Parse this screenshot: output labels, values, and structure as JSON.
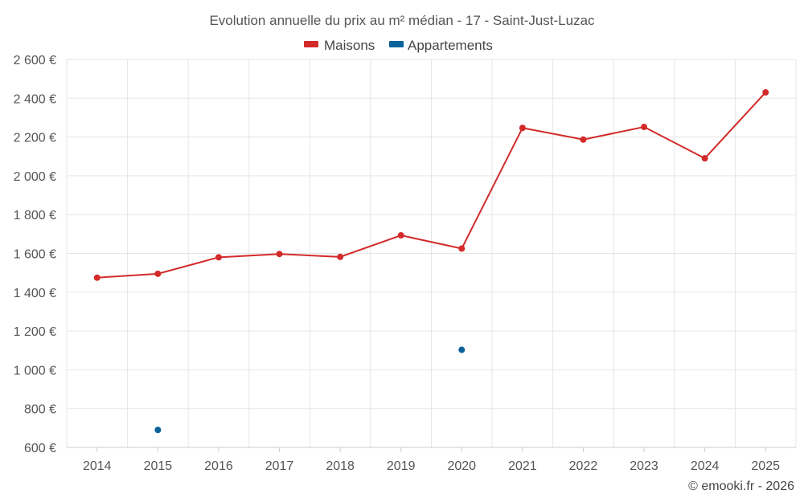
{
  "chart_data": {
    "type": "line",
    "title": "Evolution annuelle du prix au m² médian - 17 - Saint-Just-Luzac",
    "categories": [
      "2014",
      "2015",
      "2016",
      "2017",
      "2018",
      "2019",
      "2020",
      "2021",
      "2022",
      "2023",
      "2024",
      "2025"
    ],
    "series": [
      {
        "name": "Maisons",
        "color": "#d32a2a",
        "values": [
          1475,
          1495,
          1580,
          1597,
          1582,
          1693,
          1625,
          2247,
          2187,
          2252,
          2090,
          2430
        ]
      },
      {
        "name": "Appartements",
        "color": "#0b629b",
        "values": [
          null,
          690,
          null,
          null,
          null,
          null,
          1103,
          null,
          null,
          null,
          null,
          null
        ]
      }
    ],
    "ylim": [
      600,
      2600
    ],
    "yticks": [
      600,
      800,
      1000,
      1200,
      1400,
      1600,
      1800,
      2000,
      2200,
      2400,
      2600
    ],
    "ytick_labels": [
      "600 €",
      "800 €",
      "1 000 €",
      "1 200 €",
      "1 400 €",
      "1 600 €",
      "1 800 €",
      "2 000 €",
      "2 200 €",
      "2 400 €",
      "2 600 €"
    ],
    "xlabel": "",
    "ylabel": "",
    "grid": true,
    "legend_position": "top-center"
  },
  "credit": "© emooki.fr - 2026"
}
